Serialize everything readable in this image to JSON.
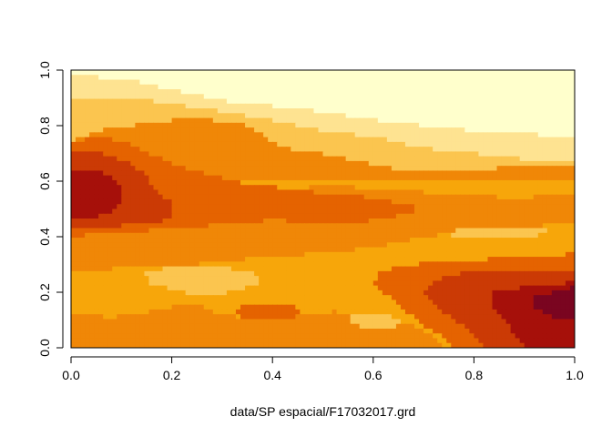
{
  "chart_data": {
    "type": "heatmap",
    "title": "",
    "xlabel": "data/SP espacial/F17032017.grd",
    "ylabel": "",
    "xlim": [
      0,
      1
    ],
    "ylim": [
      0,
      1
    ],
    "x_ticks": [
      "0.0",
      "0.2",
      "0.4",
      "0.6",
      "0.8",
      "1.0"
    ],
    "y_ticks": [
      "0.0",
      "0.2",
      "0.4",
      "0.6",
      "0.8",
      "1.0"
    ],
    "grid": false,
    "palette": [
      "#FFFFCC",
      "#FEE391",
      "#FBC54F",
      "#F7A60A",
      "#F08707",
      "#E56300",
      "#CB3A05",
      "#A6100A",
      "#7A0520"
    ],
    "regions": [
      {
        "level": 1,
        "points": [
          [
            0,
            0.98
          ],
          [
            0.1,
            0.97
          ],
          [
            0.2,
            0.93
          ],
          [
            0.3,
            0.89
          ],
          [
            0.4,
            0.87
          ],
          [
            0.5,
            0.85
          ],
          [
            0.6,
            0.82
          ],
          [
            0.7,
            0.8
          ],
          [
            0.8,
            0.78
          ],
          [
            0.9,
            0.77
          ],
          [
            1,
            0.76
          ],
          [
            1,
            1
          ],
          [
            0,
            1
          ]
        ]
      },
      {
        "level": 2,
        "points": [
          [
            0,
            0.9
          ],
          [
            0.1,
            0.9
          ],
          [
            0.2,
            0.88
          ],
          [
            0.3,
            0.85
          ],
          [
            0.4,
            0.82
          ],
          [
            0.5,
            0.78
          ],
          [
            0.6,
            0.76
          ],
          [
            0.7,
            0.72
          ],
          [
            0.8,
            0.7
          ],
          [
            0.9,
            0.68
          ],
          [
            1,
            0.68
          ],
          [
            1,
            0.76
          ],
          [
            0.9,
            0.77
          ],
          [
            0.8,
            0.78
          ],
          [
            0.7,
            0.8
          ],
          [
            0.6,
            0.82
          ],
          [
            0.5,
            0.85
          ],
          [
            0.4,
            0.87
          ],
          [
            0.3,
            0.89
          ],
          [
            0.2,
            0.93
          ],
          [
            0.1,
            0.97
          ],
          [
            0,
            0.98
          ]
        ]
      },
      {
        "level": 3,
        "points": [
          [
            0,
            0.62
          ],
          [
            0.2,
            0.62
          ],
          [
            0.4,
            0.62
          ],
          [
            0.6,
            0.62
          ],
          [
            0.8,
            0.62
          ],
          [
            1,
            0.62
          ],
          [
            1,
            0.68
          ],
          [
            0.9,
            0.68
          ],
          [
            0.8,
            0.7
          ],
          [
            0.7,
            0.72
          ],
          [
            0.6,
            0.76
          ],
          [
            0.5,
            0.78
          ],
          [
            0.4,
            0.82
          ],
          [
            0.3,
            0.85
          ],
          [
            0.2,
            0.88
          ],
          [
            0.1,
            0.9
          ],
          [
            0,
            0.9
          ]
        ]
      },
      {
        "level": 4,
        "points": [
          [
            0,
            0
          ],
          [
            1,
            0
          ],
          [
            1,
            0.62
          ],
          [
            0,
            0.62
          ]
        ]
      },
      {
        "level": 5,
        "points": [
          [
            0,
            0.48
          ],
          [
            0.06,
            0.52
          ],
          [
            0.12,
            0.51
          ],
          [
            0.2,
            0.53
          ],
          [
            0.3,
            0.54
          ],
          [
            0.4,
            0.56
          ],
          [
            0.48,
            0.58
          ],
          [
            0.55,
            0.58
          ],
          [
            0.62,
            0.57
          ],
          [
            0.7,
            0.56
          ],
          [
            0.78,
            0.55
          ],
          [
            0.88,
            0.54
          ],
          [
            1,
            0.55
          ],
          [
            1,
            0.45
          ],
          [
            0.94,
            0.44
          ],
          [
            0.88,
            0.43
          ],
          [
            0.8,
            0.42
          ],
          [
            0.7,
            0.4
          ],
          [
            0.6,
            0.36
          ],
          [
            0.5,
            0.34
          ],
          [
            0.4,
            0.33
          ],
          [
            0.3,
            0.31
          ],
          [
            0.2,
            0.29
          ],
          [
            0.1,
            0.29
          ],
          [
            0.04,
            0.27
          ],
          [
            0,
            0.27
          ]
        ]
      },
      {
        "level": 5,
        "points": [
          [
            0,
            0.12
          ],
          [
            0.08,
            0.11
          ],
          [
            0.16,
            0.13
          ],
          [
            0.24,
            0.16
          ],
          [
            0.3,
            0.12
          ],
          [
            0.36,
            0.1
          ],
          [
            0.44,
            0.11
          ],
          [
            0.52,
            0.13
          ],
          [
            0.6,
            0.12
          ],
          [
            0.68,
            0.08
          ],
          [
            0.72,
            0.04
          ],
          [
            0.74,
            0
          ],
          [
            0,
            0
          ]
        ]
      },
      {
        "level": 5,
        "points": [
          [
            0,
            0.74
          ],
          [
            0.05,
            0.78
          ],
          [
            0.12,
            0.8
          ],
          [
            0.2,
            0.82
          ],
          [
            0.28,
            0.82
          ],
          [
            0.35,
            0.8
          ],
          [
            0.4,
            0.74
          ],
          [
            0.45,
            0.71
          ],
          [
            0.5,
            0.7
          ],
          [
            0.55,
            0.68
          ],
          [
            0.6,
            0.66
          ],
          [
            0.66,
            0.64
          ],
          [
            0.74,
            0.63
          ],
          [
            0.82,
            0.64
          ],
          [
            0.9,
            0.66
          ],
          [
            1,
            0.66
          ],
          [
            1,
            0.6
          ],
          [
            0.9,
            0.6
          ],
          [
            0.8,
            0.6
          ],
          [
            0.7,
            0.6
          ],
          [
            0.6,
            0.6
          ],
          [
            0.5,
            0.6
          ],
          [
            0.4,
            0.6
          ],
          [
            0.3,
            0.6
          ],
          [
            0.2,
            0.62
          ],
          [
            0.1,
            0.66
          ],
          [
            0,
            0.66
          ]
        ]
      },
      {
        "level": 3,
        "points": [
          [
            0.14,
            0.27
          ],
          [
            0.22,
            0.3
          ],
          [
            0.3,
            0.29
          ],
          [
            0.36,
            0.27
          ],
          [
            0.38,
            0.24
          ],
          [
            0.34,
            0.21
          ],
          [
            0.28,
            0.19
          ],
          [
            0.22,
            0.2
          ],
          [
            0.16,
            0.23
          ]
        ]
      },
      {
        "level": 3,
        "points": [
          [
            0.56,
            0.12
          ],
          [
            0.62,
            0.12
          ],
          [
            0.66,
            0.1
          ],
          [
            0.64,
            0.07
          ],
          [
            0.58,
            0.07
          ],
          [
            0.55,
            0.09
          ]
        ]
      },
      {
        "level": 3,
        "points": [
          [
            0.74,
            0.42
          ],
          [
            0.82,
            0.43
          ],
          [
            0.9,
            0.43
          ],
          [
            0.96,
            0.42
          ],
          [
            0.92,
            0.4
          ],
          [
            0.82,
            0.4
          ],
          [
            0.76,
            0.4
          ]
        ]
      },
      {
        "level": 6,
        "points": [
          [
            0,
            0.74
          ],
          [
            0.06,
            0.76
          ],
          [
            0.12,
            0.73
          ],
          [
            0.18,
            0.68
          ],
          [
            0.24,
            0.64
          ],
          [
            0.32,
            0.6
          ],
          [
            0.4,
            0.58
          ],
          [
            0.48,
            0.56
          ],
          [
            0.56,
            0.55
          ],
          [
            0.66,
            0.52
          ],
          [
            0.7,
            0.5
          ],
          [
            0.64,
            0.47
          ],
          [
            0.56,
            0.45
          ],
          [
            0.48,
            0.45
          ],
          [
            0.4,
            0.46
          ],
          [
            0.34,
            0.45
          ],
          [
            0.28,
            0.44
          ],
          [
            0.2,
            0.43
          ],
          [
            0.14,
            0.42
          ],
          [
            0.06,
            0.41
          ],
          [
            0,
            0.4
          ]
        ]
      },
      {
        "level": 6,
        "points": [
          [
            0.62,
            0.28
          ],
          [
            0.68,
            0.3
          ],
          [
            0.76,
            0.31
          ],
          [
            0.84,
            0.32
          ],
          [
            0.92,
            0.32
          ],
          [
            1,
            0.34
          ],
          [
            1,
            0
          ],
          [
            0.76,
            0
          ],
          [
            0.74,
            0.04
          ],
          [
            0.7,
            0.08
          ],
          [
            0.66,
            0.14
          ],
          [
            0.62,
            0.2
          ],
          [
            0.6,
            0.24
          ]
        ]
      },
      {
        "level": 6,
        "points": [
          [
            0.32,
            0.14
          ],
          [
            0.38,
            0.16
          ],
          [
            0.44,
            0.15
          ],
          [
            0.46,
            0.12
          ],
          [
            0.42,
            0.1
          ],
          [
            0.34,
            0.11
          ]
        ]
      },
      {
        "level": 7,
        "points": [
          [
            0,
            0.7
          ],
          [
            0.06,
            0.7
          ],
          [
            0.11,
            0.67
          ],
          [
            0.15,
            0.62
          ],
          [
            0.17,
            0.56
          ],
          [
            0.2,
            0.52
          ],
          [
            0.2,
            0.47
          ],
          [
            0.16,
            0.44
          ],
          [
            0.1,
            0.44
          ],
          [
            0.04,
            0.43
          ],
          [
            0,
            0.43
          ]
        ]
      },
      {
        "level": 7,
        "points": [
          [
            0.72,
            0.24
          ],
          [
            0.78,
            0.27
          ],
          [
            0.86,
            0.28
          ],
          [
            0.94,
            0.27
          ],
          [
            1,
            0.28
          ],
          [
            1,
            0
          ],
          [
            0.82,
            0
          ],
          [
            0.8,
            0.05
          ],
          [
            0.76,
            0.1
          ],
          [
            0.72,
            0.16
          ],
          [
            0.7,
            0.2
          ]
        ]
      },
      {
        "level": 8,
        "points": [
          [
            0,
            0.63
          ],
          [
            0.04,
            0.64
          ],
          [
            0.08,
            0.62
          ],
          [
            0.1,
            0.58
          ],
          [
            0.1,
            0.52
          ],
          [
            0.08,
            0.48
          ],
          [
            0.04,
            0.47
          ],
          [
            0,
            0.47
          ]
        ]
      },
      {
        "level": 8,
        "points": [
          [
            0.84,
            0.2
          ],
          [
            0.9,
            0.22
          ],
          [
            0.96,
            0.22
          ],
          [
            1,
            0.24
          ],
          [
            1,
            0
          ],
          [
            0.9,
            0
          ],
          [
            0.88,
            0.05
          ],
          [
            0.86,
            0.1
          ],
          [
            0.83,
            0.15
          ]
        ]
      },
      {
        "level": 9,
        "points": [
          [
            0.92,
            0.18
          ],
          [
            0.97,
            0.21
          ],
          [
            1,
            0.22
          ],
          [
            1,
            0.1
          ],
          [
            0.97,
            0.1
          ],
          [
            0.94,
            0.12
          ],
          [
            0.92,
            0.15
          ]
        ]
      }
    ]
  }
}
